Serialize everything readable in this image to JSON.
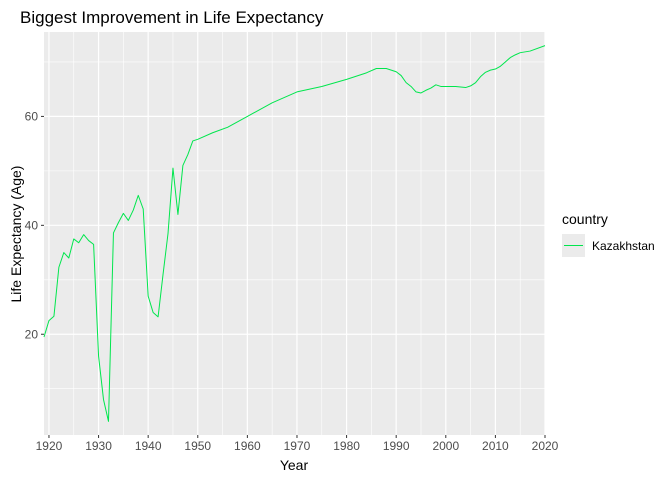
{
  "chart_data": {
    "type": "line",
    "title": "Biggest Improvement in Life Expectancy",
    "xlabel": "Year",
    "ylabel": "Life Expectancy (Age)",
    "xlim": [
      1919,
      2020
    ],
    "ylim": [
      1.5,
      75.5
    ],
    "x_ticks": [
      1920,
      1930,
      1940,
      1950,
      1960,
      1970,
      1980,
      1990,
      2000,
      2010,
      2020
    ],
    "y_ticks": [
      20,
      40,
      60
    ],
    "grid": true,
    "panel_background": "#ebebeb",
    "grid_color": "#ffffff",
    "legend": {
      "title": "country",
      "position": "right"
    },
    "series": [
      {
        "name": "Kazakhstan",
        "color": "#00e64d",
        "points": [
          [
            1919,
            19.5
          ],
          [
            1920,
            22.5
          ],
          [
            1921,
            23.3
          ],
          [
            1922,
            32.3
          ],
          [
            1923,
            35.0
          ],
          [
            1924,
            34.0
          ],
          [
            1925,
            37.5
          ],
          [
            1926,
            36.8
          ],
          [
            1927,
            38.3
          ],
          [
            1928,
            37.2
          ],
          [
            1929,
            36.5
          ],
          [
            1930,
            16.0
          ],
          [
            1931,
            8.0
          ],
          [
            1932,
            4.0
          ],
          [
            1933,
            38.6
          ],
          [
            1934,
            40.5
          ],
          [
            1935,
            42.2
          ],
          [
            1936,
            40.9
          ],
          [
            1937,
            42.8
          ],
          [
            1938,
            45.5
          ],
          [
            1939,
            43.0
          ],
          [
            1940,
            27.0
          ],
          [
            1941,
            24.0
          ],
          [
            1942,
            23.2
          ],
          [
            1943,
            31.0
          ],
          [
            1944,
            38.5
          ],
          [
            1945,
            50.5
          ],
          [
            1946,
            42.0
          ],
          [
            1947,
            51.0
          ],
          [
            1948,
            53.0
          ],
          [
            1949,
            55.5
          ],
          [
            1950,
            55.8
          ],
          [
            1953,
            57.0
          ],
          [
            1956,
            58.0
          ],
          [
            1960,
            60.0
          ],
          [
            1965,
            62.5
          ],
          [
            1970,
            64.5
          ],
          [
            1975,
            65.5
          ],
          [
            1980,
            66.8
          ],
          [
            1984,
            68.0
          ],
          [
            1986,
            68.8
          ],
          [
            1988,
            68.8
          ],
          [
            1990,
            68.2
          ],
          [
            1991,
            67.5
          ],
          [
            1992,
            66.2
          ],
          [
            1993,
            65.5
          ],
          [
            1994,
            64.5
          ],
          [
            1995,
            64.3
          ],
          [
            1996,
            64.8
          ],
          [
            1997,
            65.2
          ],
          [
            1998,
            65.8
          ],
          [
            1999,
            65.5
          ],
          [
            2000,
            65.5
          ],
          [
            2002,
            65.5
          ],
          [
            2004,
            65.3
          ],
          [
            2005,
            65.6
          ],
          [
            2006,
            66.2
          ],
          [
            2007,
            67.3
          ],
          [
            2008,
            68.1
          ],
          [
            2009,
            68.5
          ],
          [
            2010,
            68.7
          ],
          [
            2011,
            69.2
          ],
          [
            2012,
            70.0
          ],
          [
            2013,
            70.8
          ],
          [
            2014,
            71.3
          ],
          [
            2015,
            71.7
          ],
          [
            2017,
            72.0
          ],
          [
            2020,
            73.0
          ]
        ]
      }
    ]
  }
}
